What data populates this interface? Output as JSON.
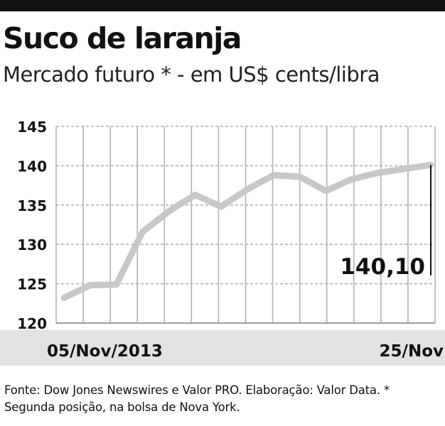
{
  "header": {
    "title": "Suco de laranja",
    "subtitle": "Mercado futuro * - em US$ cents/libra"
  },
  "chart_data": {
    "type": "line",
    "title": "Suco de laranja",
    "subtitle": "Mercado futuro * - em US$ cents/libra",
    "xlabel": "",
    "ylabel": "",
    "x": [
      "05/Nov/2013",
      "",
      "",
      "",
      "",
      "",
      "",
      "",
      "",
      "",
      "",
      "",
      "",
      "",
      "25/Nov"
    ],
    "x_tick_labels": [
      "05/Nov/2013",
      "25/Nov"
    ],
    "series": [
      {
        "name": "",
        "values": [
          123.2,
          124.8,
          124.9,
          131.6,
          134.2,
          136.3,
          134.8,
          137.0,
          138.8,
          138.6,
          136.8,
          138.3,
          139.1,
          139.6,
          140.1
        ]
      }
    ],
    "ylim": [
      120,
      145
    ],
    "yticks": [
      120,
      125,
      130,
      135,
      140,
      145
    ],
    "grid": true,
    "legend": "none",
    "annotation": {
      "text": "140,10",
      "value": 140.1
    },
    "colors": {
      "line": "#c8c8c8",
      "grid": "#b4b4b4",
      "axis_band": "#e2e2e2",
      "annotation_line": "#111111"
    }
  },
  "footer": {
    "source": "Fonte: Dow Jones Newswires e Valor PRO. Elaboração: Valor Data. * Segunda posição, na bolsa de Nova York."
  }
}
